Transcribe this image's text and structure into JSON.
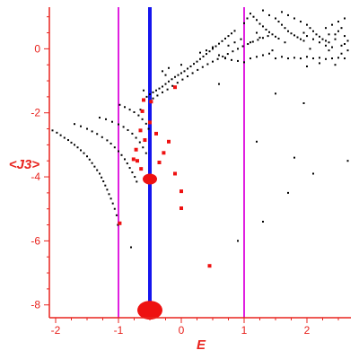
{
  "chart_data": {
    "type": "scatter",
    "xlabel": "E",
    "ylabel": "<J3>",
    "xlim": [
      -2.1,
      2.7
    ],
    "ylim": [
      -8.4,
      1.3
    ],
    "xticks": [
      "-2",
      "-1",
      "0",
      "1",
      "2"
    ],
    "yticks": [
      "-8",
      "-6",
      "-4",
      "-2",
      "0"
    ],
    "grid": false,
    "colors": {
      "axis": "#e8231e",
      "points": "#000000",
      "highlight": "#ee1111",
      "vline_outer": "#e020e0",
      "vline_center": "#1515ee"
    },
    "vlines": [
      {
        "x": -1.0,
        "style": "magenta"
      },
      {
        "x": 1.0,
        "style": "magenta"
      },
      {
        "x": -0.5,
        "style": "blue"
      }
    ],
    "black_series": [
      [
        -2.05,
        -2.55
      ],
      [
        -1.98,
        -2.62
      ],
      [
        -1.92,
        -2.7
      ],
      [
        -1.86,
        -2.78
      ],
      [
        -1.8,
        -2.85
      ],
      [
        -1.75,
        -2.93
      ],
      [
        -1.7,
        -3.0
      ],
      [
        -1.65,
        -3.08
      ],
      [
        -1.6,
        -3.17
      ],
      [
        -1.55,
        -3.26
      ],
      [
        -1.5,
        -3.36
      ],
      [
        -1.46,
        -3.46
      ],
      [
        -1.42,
        -3.57
      ],
      [
        -1.38,
        -3.68
      ],
      [
        -1.34,
        -3.79
      ],
      [
        -1.3,
        -3.9
      ],
      [
        -1.27,
        -4.02
      ],
      [
        -1.24,
        -4.14
      ],
      [
        -1.21,
        -4.27
      ],
      [
        -1.18,
        -4.4
      ],
      [
        -1.15,
        -4.54
      ],
      [
        -1.12,
        -4.68
      ],
      [
        -1.09,
        -4.83
      ],
      [
        -1.06,
        -5.0
      ],
      [
        -1.03,
        -5.2
      ],
      [
        -1.01,
        -5.5
      ],
      [
        -1.7,
        -2.35
      ],
      [
        -1.6,
        -2.42
      ],
      [
        -1.5,
        -2.5
      ],
      [
        -1.42,
        -2.58
      ],
      [
        -1.34,
        -2.66
      ],
      [
        -1.26,
        -2.76
      ],
      [
        -1.18,
        -2.86
      ],
      [
        -1.12,
        -2.96
      ],
      [
        -1.06,
        -3.08
      ],
      [
        -1.0,
        -3.2
      ],
      [
        -0.95,
        -3.32
      ],
      [
        -0.9,
        -3.45
      ],
      [
        -0.86,
        -3.58
      ],
      [
        -0.82,
        -3.72
      ],
      [
        -0.78,
        -3.86
      ],
      [
        -0.74,
        -4.0
      ],
      [
        -0.71,
        -4.15
      ],
      [
        -1.3,
        -2.15
      ],
      [
        -1.2,
        -2.2
      ],
      [
        -1.1,
        -2.28
      ],
      [
        -1.0,
        -2.36
      ],
      [
        -0.92,
        -2.44
      ],
      [
        -0.85,
        -2.54
      ],
      [
        -0.78,
        -2.65
      ],
      [
        -0.72,
        -2.78
      ],
      [
        -0.66,
        -2.92
      ],
      [
        -0.61,
        -3.08
      ],
      [
        -0.56,
        -3.26
      ],
      [
        -0.98,
        -1.75
      ],
      [
        -0.9,
        -1.82
      ],
      [
        -0.82,
        -1.9
      ],
      [
        -0.75,
        -1.98
      ],
      [
        -0.68,
        -2.08
      ],
      [
        -0.62,
        -2.2
      ],
      [
        -0.56,
        -2.34
      ],
      [
        -0.52,
        -2.5
      ],
      [
        -0.6,
        -1.6
      ],
      [
        -0.55,
        -1.5
      ],
      [
        -0.5,
        -1.42
      ],
      [
        -0.45,
        -1.36
      ],
      [
        -0.4,
        -1.3
      ],
      [
        -0.35,
        -1.24
      ],
      [
        -0.3,
        -1.18
      ],
      [
        -0.25,
        -1.1
      ],
      [
        -0.2,
        -1.02
      ],
      [
        -0.15,
        -0.95
      ],
      [
        -0.1,
        -0.88
      ],
      [
        -0.05,
        -0.82
      ],
      [
        0.0,
        -0.76
      ],
      [
        0.05,
        -0.7
      ],
      [
        0.1,
        -0.62
      ],
      [
        0.15,
        -0.55
      ],
      [
        0.2,
        -0.47
      ],
      [
        0.25,
        -0.4
      ],
      [
        0.3,
        -0.32
      ],
      [
        0.35,
        -0.24
      ],
      [
        0.4,
        -0.16
      ],
      [
        0.45,
        -0.08
      ],
      [
        0.5,
        0.0
      ],
      [
        0.55,
        0.08
      ],
      [
        0.6,
        0.16
      ],
      [
        0.65,
        0.24
      ],
      [
        0.7,
        0.32
      ],
      [
        0.75,
        0.4
      ],
      [
        0.8,
        0.48
      ],
      [
        0.85,
        0.56
      ],
      [
        -0.45,
        -1.55
      ],
      [
        -0.38,
        -1.46
      ],
      [
        -0.3,
        -1.36
      ],
      [
        -0.22,
        -1.27
      ],
      [
        -0.14,
        -1.16
      ],
      [
        -0.06,
        -1.06
      ],
      [
        0.02,
        -0.96
      ],
      [
        0.1,
        -0.86
      ],
      [
        0.18,
        -0.76
      ],
      [
        0.26,
        -0.66
      ],
      [
        0.34,
        -0.57
      ],
      [
        0.42,
        -0.48
      ],
      [
        0.5,
        -0.4
      ],
      [
        0.58,
        -0.32
      ],
      [
        0.66,
        -0.24
      ],
      [
        0.74,
        -0.16
      ],
      [
        0.82,
        -0.08
      ],
      [
        0.9,
        0.0
      ],
      [
        0.98,
        0.08
      ],
      [
        1.06,
        0.15
      ],
      [
        1.14,
        0.22
      ],
      [
        1.22,
        0.28
      ],
      [
        1.3,
        0.34
      ],
      [
        1.38,
        0.4
      ],
      [
        0.3,
        -0.12
      ],
      [
        0.4,
        -0.05
      ],
      [
        0.5,
        0.05
      ],
      [
        0.6,
        -0.2
      ],
      [
        0.7,
        -0.28
      ],
      [
        0.8,
        -0.35
      ],
      [
        0.9,
        -0.38
      ],
      [
        1.0,
        -0.42
      ],
      [
        1.1,
        -0.3
      ],
      [
        1.2,
        -0.25
      ],
      [
        1.3,
        -0.2
      ],
      [
        1.4,
        -0.15
      ],
      [
        1.0,
        0.8
      ],
      [
        1.05,
        0.95
      ],
      [
        1.1,
        1.1
      ],
      [
        1.15,
        1.0
      ],
      [
        1.2,
        0.9
      ],
      [
        1.25,
        0.78
      ],
      [
        1.3,
        0.7
      ],
      [
        1.35,
        0.6
      ],
      [
        1.4,
        0.52
      ],
      [
        1.45,
        0.45
      ],
      [
        1.5,
        0.38
      ],
      [
        1.55,
        0.32
      ],
      [
        1.3,
        1.2
      ],
      [
        1.4,
        1.05
      ],
      [
        1.5,
        0.95
      ],
      [
        1.55,
        0.85
      ],
      [
        1.6,
        0.75
      ],
      [
        1.65,
        0.65
      ],
      [
        1.7,
        0.55
      ],
      [
        1.75,
        0.48
      ],
      [
        1.8,
        0.42
      ],
      [
        1.85,
        0.36
      ],
      [
        1.9,
        0.3
      ],
      [
        1.95,
        0.25
      ],
      [
        1.6,
        1.15
      ],
      [
        1.7,
        1.05
      ],
      [
        1.8,
        0.95
      ],
      [
        1.9,
        0.85
      ],
      [
        2.0,
        0.75
      ],
      [
        2.05,
        0.65
      ],
      [
        2.1,
        0.55
      ],
      [
        2.15,
        0.45
      ],
      [
        2.2,
        0.38
      ],
      [
        2.25,
        0.3
      ],
      [
        2.3,
        0.25
      ],
      [
        2.35,
        0.2
      ],
      [
        1.95,
        0.5
      ],
      [
        2.0,
        0.4
      ],
      [
        2.1,
        0.3
      ],
      [
        2.2,
        0.2
      ],
      [
        2.3,
        0.1
      ],
      [
        2.4,
        0.05
      ],
      [
        2.45,
        0.45
      ],
      [
        2.5,
        0.55
      ],
      [
        2.55,
        0.65
      ],
      [
        2.6,
        0.4
      ],
      [
        2.65,
        0.25
      ],
      [
        2.55,
        0.1
      ],
      [
        2.3,
        0.65
      ],
      [
        2.4,
        0.75
      ],
      [
        2.5,
        0.85
      ],
      [
        2.6,
        0.95
      ],
      [
        2.45,
        0.3
      ],
      [
        2.35,
        0.45
      ],
      [
        1.5,
        -0.3
      ],
      [
        1.6,
        -0.25
      ],
      [
        1.7,
        -0.3
      ],
      [
        1.8,
        -0.28
      ],
      [
        1.9,
        -0.3
      ],
      [
        2.0,
        -0.25
      ],
      [
        2.1,
        -0.3
      ],
      [
        2.2,
        -0.28
      ],
      [
        2.3,
        -0.32
      ],
      [
        2.4,
        -0.3
      ],
      [
        2.5,
        -0.28
      ],
      [
        2.6,
        -0.3
      ],
      [
        1.2,
        0.5
      ],
      [
        1.25,
        0.35
      ],
      [
        1.1,
        0.2
      ],
      [
        0.95,
        0.3
      ],
      [
        0.85,
        0.2
      ],
      [
        0.75,
        0.1
      ],
      [
        2.0,
        -0.55
      ],
      [
        2.2,
        -0.45
      ],
      [
        2.45,
        -0.5
      ],
      [
        2.55,
        -0.15
      ],
      [
        2.65,
        -0.05
      ],
      [
        2.6,
        0.15
      ],
      [
        0.6,
        -1.1
      ],
      [
        1.2,
        -2.9
      ],
      [
        1.8,
        -3.4
      ],
      [
        2.1,
        -3.9
      ],
      [
        2.65,
        -3.5
      ],
      [
        1.7,
        -4.5
      ],
      [
        1.3,
        -5.4
      ],
      [
        0.9,
        -6.0
      ],
      [
        1.95,
        -1.7
      ],
      [
        1.5,
        -1.4
      ],
      [
        0.0,
        -0.5
      ],
      [
        -0.3,
        -0.7
      ],
      [
        -0.2,
        -0.6
      ],
      [
        -0.6,
        -1.3
      ],
      [
        -0.65,
        -1.9
      ],
      [
        -0.8,
        -6.2
      ],
      [
        0.7,
        -0.3
      ],
      [
        -0.25,
        -0.82
      ],
      [
        2.05,
        0.0
      ],
      [
        1.65,
        0.2
      ],
      [
        2.35,
        -0.05
      ],
      [
        1.45,
        -0.05
      ]
    ],
    "red_series": [
      {
        "x": -0.1,
        "y": -1.2,
        "size": 1
      },
      {
        "x": -0.6,
        "y": -1.6,
        "size": 1
      },
      {
        "x": -0.48,
        "y": -1.65,
        "size": 1
      },
      {
        "x": -0.62,
        "y": -1.95,
        "size": 1
      },
      {
        "x": -0.5,
        "y": -2.3,
        "size": 1
      },
      {
        "x": -0.65,
        "y": -2.55,
        "size": 1
      },
      {
        "x": -0.4,
        "y": -2.65,
        "size": 1
      },
      {
        "x": -0.58,
        "y": -2.85,
        "size": 1
      },
      {
        "x": -0.2,
        "y": -2.9,
        "size": 1
      },
      {
        "x": -0.72,
        "y": -3.15,
        "size": 1
      },
      {
        "x": -0.28,
        "y": -3.25,
        "size": 1
      },
      {
        "x": -0.76,
        "y": -3.45,
        "size": 1
      },
      {
        "x": -0.7,
        "y": -3.5,
        "size": 1
      },
      {
        "x": -0.64,
        "y": -3.75,
        "size": 1
      },
      {
        "x": -0.35,
        "y": -3.55,
        "size": 1
      },
      {
        "x": -0.1,
        "y": -3.9,
        "size": 1
      },
      {
        "x": -0.5,
        "y": -4.07,
        "size": 3
      },
      {
        "x": 0.0,
        "y": -4.45,
        "size": 1
      },
      {
        "x": 0.0,
        "y": -4.98,
        "size": 1
      },
      {
        "x": -0.98,
        "y": -5.45,
        "size": 1
      },
      {
        "x": 0.45,
        "y": -6.78,
        "size": 1
      },
      {
        "x": -0.5,
        "y": -8.27,
        "size": 5
      }
    ]
  }
}
